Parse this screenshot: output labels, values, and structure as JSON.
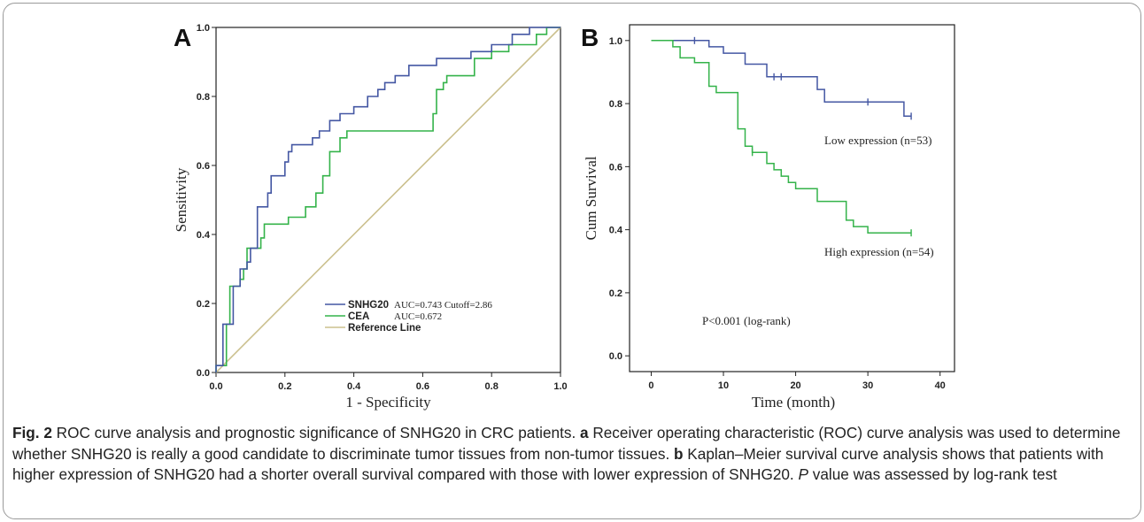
{
  "chart_data": [
    {
      "type": "line",
      "panel_label": "A",
      "xlabel": "1 - Specificity",
      "ylabel": "Sensitivity",
      "xlim": [
        0,
        1
      ],
      "ylim": [
        0,
        1
      ],
      "x_ticks": [
        "0.0",
        "0.2",
        "0.4",
        "0.6",
        "0.8",
        "1.0"
      ],
      "y_ticks": [
        "0.0",
        "0.2",
        "0.4",
        "0.6",
        "0.8",
        "1.0"
      ],
      "grid": false,
      "legend_position": "bottom-center",
      "series": [
        {
          "name": "SNHG20",
          "stat": "AUC=0.743 Cutoff=2.86",
          "color": "#4457a3",
          "points": [
            [
              0,
              0
            ],
            [
              0,
              0.02
            ],
            [
              0.02,
              0.02
            ],
            [
              0.02,
              0.14
            ],
            [
              0.05,
              0.14
            ],
            [
              0.05,
              0.25
            ],
            [
              0.07,
              0.25
            ],
            [
              0.07,
              0.3
            ],
            [
              0.09,
              0.3
            ],
            [
              0.09,
              0.32
            ],
            [
              0.1,
              0.32
            ],
            [
              0.1,
              0.36
            ],
            [
              0.12,
              0.36
            ],
            [
              0.12,
              0.48
            ],
            [
              0.15,
              0.48
            ],
            [
              0.15,
              0.52
            ],
            [
              0.16,
              0.52
            ],
            [
              0.16,
              0.57
            ],
            [
              0.2,
              0.57
            ],
            [
              0.2,
              0.61
            ],
            [
              0.21,
              0.61
            ],
            [
              0.21,
              0.64
            ],
            [
              0.22,
              0.64
            ],
            [
              0.22,
              0.66
            ],
            [
              0.28,
              0.66
            ],
            [
              0.28,
              0.68
            ],
            [
              0.3,
              0.68
            ],
            [
              0.3,
              0.7
            ],
            [
              0.33,
              0.7
            ],
            [
              0.33,
              0.73
            ],
            [
              0.36,
              0.73
            ],
            [
              0.36,
              0.75
            ],
            [
              0.4,
              0.75
            ],
            [
              0.4,
              0.77
            ],
            [
              0.44,
              0.77
            ],
            [
              0.44,
              0.8
            ],
            [
              0.47,
              0.8
            ],
            [
              0.47,
              0.82
            ],
            [
              0.49,
              0.82
            ],
            [
              0.49,
              0.84
            ],
            [
              0.52,
              0.84
            ],
            [
              0.52,
              0.86
            ],
            [
              0.56,
              0.86
            ],
            [
              0.56,
              0.89
            ],
            [
              0.64,
              0.89
            ],
            [
              0.64,
              0.91
            ],
            [
              0.74,
              0.91
            ],
            [
              0.74,
              0.93
            ],
            [
              0.8,
              0.93
            ],
            [
              0.8,
              0.95
            ],
            [
              0.86,
              0.95
            ],
            [
              0.86,
              0.98
            ],
            [
              0.91,
              0.98
            ],
            [
              0.91,
              1.0
            ],
            [
              1.0,
              1.0
            ]
          ]
        },
        {
          "name": "CEA",
          "stat": "AUC=0.672",
          "color": "#34b34a",
          "points": [
            [
              0,
              0
            ],
            [
              0,
              0.02
            ],
            [
              0.03,
              0.02
            ],
            [
              0.03,
              0.14
            ],
            [
              0.04,
              0.14
            ],
            [
              0.04,
              0.25
            ],
            [
              0.07,
              0.25
            ],
            [
              0.07,
              0.27
            ],
            [
              0.08,
              0.27
            ],
            [
              0.08,
              0.3
            ],
            [
              0.09,
              0.3
            ],
            [
              0.09,
              0.36
            ],
            [
              0.13,
              0.36
            ],
            [
              0.13,
              0.39
            ],
            [
              0.14,
              0.39
            ],
            [
              0.14,
              0.43
            ],
            [
              0.21,
              0.43
            ],
            [
              0.21,
              0.45
            ],
            [
              0.26,
              0.45
            ],
            [
              0.26,
              0.48
            ],
            [
              0.29,
              0.48
            ],
            [
              0.29,
              0.52
            ],
            [
              0.31,
              0.52
            ],
            [
              0.31,
              0.57
            ],
            [
              0.33,
              0.57
            ],
            [
              0.33,
              0.64
            ],
            [
              0.36,
              0.64
            ],
            [
              0.36,
              0.68
            ],
            [
              0.38,
              0.68
            ],
            [
              0.38,
              0.7
            ],
            [
              0.63,
              0.7
            ],
            [
              0.63,
              0.75
            ],
            [
              0.64,
              0.75
            ],
            [
              0.64,
              0.82
            ],
            [
              0.66,
              0.82
            ],
            [
              0.66,
              0.84
            ],
            [
              0.67,
              0.84
            ],
            [
              0.67,
              0.86
            ],
            [
              0.75,
              0.86
            ],
            [
              0.75,
              0.91
            ],
            [
              0.8,
              0.91
            ],
            [
              0.8,
              0.93
            ],
            [
              0.85,
              0.93
            ],
            [
              0.85,
              0.95
            ],
            [
              0.93,
              0.95
            ],
            [
              0.93,
              0.98
            ],
            [
              0.96,
              0.98
            ],
            [
              0.96,
              1.0
            ],
            [
              1.0,
              1.0
            ]
          ]
        },
        {
          "name": "Reference Line",
          "color": "#cbc08e",
          "points": [
            [
              0,
              0
            ],
            [
              1,
              1
            ]
          ]
        }
      ]
    },
    {
      "type": "line",
      "panel_label": "B",
      "xlabel": "Time (month)",
      "ylabel": "Cum Survival",
      "xlim": [
        -3,
        42
      ],
      "ylim": [
        -0.05,
        1.05
      ],
      "x_ticks": [
        "0",
        "10",
        "20",
        "30",
        "40"
      ],
      "y_ticks": [
        "0.0",
        "0.2",
        "0.4",
        "0.6",
        "0.8",
        "1.0"
      ],
      "grid": false,
      "annotation": "P<0.001 (log-rank)",
      "series": [
        {
          "name": "Low expression (n=53)",
          "color": "#4457a3",
          "points": [
            [
              0,
              1.0
            ],
            [
              8,
              1.0
            ],
            [
              8,
              0.98
            ],
            [
              10,
              0.98
            ],
            [
              10,
              0.96
            ],
            [
              13,
              0.96
            ],
            [
              13,
              0.925
            ],
            [
              16,
              0.925
            ],
            [
              16,
              0.885
            ],
            [
              23,
              0.885
            ],
            [
              23,
              0.845
            ],
            [
              24,
              0.845
            ],
            [
              24,
              0.805
            ],
            [
              35,
              0.805
            ],
            [
              35,
              0.76
            ],
            [
              36,
              0.76
            ]
          ],
          "censored": [
            [
              6,
              1.0
            ],
            [
              17,
              0.885
            ],
            [
              18,
              0.885
            ],
            [
              30,
              0.805
            ],
            [
              36,
              0.76
            ]
          ]
        },
        {
          "name": "High expression (n=54)",
          "color": "#34b34a",
          "points": [
            [
              0,
              1.0
            ],
            [
              3,
              1.0
            ],
            [
              3,
              0.98
            ],
            [
              4,
              0.98
            ],
            [
              4,
              0.945
            ],
            [
              6,
              0.945
            ],
            [
              6,
              0.93
            ],
            [
              8,
              0.93
            ],
            [
              8,
              0.855
            ],
            [
              9,
              0.855
            ],
            [
              9,
              0.835
            ],
            [
              12,
              0.835
            ],
            [
              12,
              0.72
            ],
            [
              13,
              0.72
            ],
            [
              13,
              0.665
            ],
            [
              14,
              0.665
            ],
            [
              14,
              0.645
            ],
            [
              16,
              0.645
            ],
            [
              16,
              0.61
            ],
            [
              17,
              0.61
            ],
            [
              17,
              0.59
            ],
            [
              18,
              0.59
            ],
            [
              18,
              0.57
            ],
            [
              19,
              0.57
            ],
            [
              19,
              0.55
            ],
            [
              20,
              0.55
            ],
            [
              20,
              0.53
            ],
            [
              23,
              0.53
            ],
            [
              23,
              0.49
            ],
            [
              27,
              0.49
            ],
            [
              27,
              0.43
            ],
            [
              28,
              0.43
            ],
            [
              28,
              0.41
            ],
            [
              30,
              0.41
            ],
            [
              30,
              0.39
            ],
            [
              36,
              0.39
            ]
          ],
          "censored": [
            [
              14,
              0.645
            ],
            [
              36,
              0.39
            ]
          ]
        }
      ]
    }
  ],
  "caption": {
    "fig_label": "Fig. 2",
    "intro": " ROC curve analysis and prognostic significance of SNHG20 in CRC patients. ",
    "a_label": "a",
    "a_text": " Receiver operating characteristic (ROC) curve analysis was used to determine whether SNHG20 is really a good candidate to discriminate tumor tissues from non-tumor tissues. ",
    "b_label": "b",
    "b_text": " Kaplan–Meier survival curve analysis shows that patients with higher expression of SNHG20 had a shorter overall survival compared with those with lower expression of SNHG20. ",
    "p_label": "P",
    "p_text": " value was assessed by log-rank test"
  }
}
